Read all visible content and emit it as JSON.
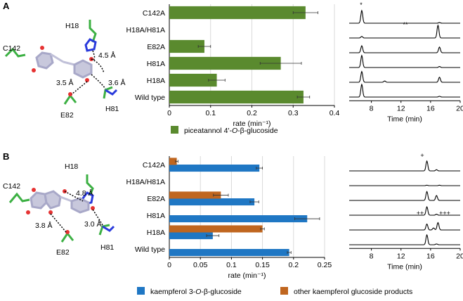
{
  "panels": [
    {
      "letter": "A"
    },
    {
      "letter": "B"
    }
  ],
  "structure_a": {
    "labels": [
      "C142",
      "H18",
      "E82",
      "H81"
    ],
    "distances": [
      "4.5 Å",
      "3.5 Å",
      "3.6 Å"
    ]
  },
  "structure_b": {
    "labels": [
      "C142",
      "H18",
      "E82",
      "H81"
    ],
    "distances": [
      "4.8 Å",
      "3.8 Å",
      "3.0 Å"
    ]
  },
  "colors": {
    "green": "#5a8a2e",
    "blue": "#1f77c4",
    "orange": "#c0661f",
    "grid": "#d9d9d9"
  },
  "chart_data": [
    {
      "type": "bar",
      "orientation": "horizontal",
      "categories": [
        "C142A",
        "H18A/H81A",
        "E82A",
        "H81A",
        "H18A",
        "Wild type"
      ],
      "series": [
        {
          "name": "piceatannol 4'-O-β-glucoside",
          "values": [
            0.33,
            0.0,
            0.085,
            0.27,
            0.115,
            0.325
          ],
          "errors": [
            0.03,
            0.0,
            0.015,
            0.05,
            0.02,
            0.015
          ]
        }
      ],
      "xlabel": "rate (min⁻¹)",
      "xticks": [
        "0",
        "0.1",
        "0.2",
        "0.3",
        "0.4"
      ],
      "xlim": [
        0,
        0.4
      ],
      "legend": {
        "label_prefix": "piceatannol 4'-",
        "label_italic": "O",
        "label_suffix": "-β-glucoside"
      }
    },
    {
      "type": "bar",
      "orientation": "horizontal",
      "categories": [
        "C142A",
        "H18A/H81A",
        "E82A",
        "H81A",
        "H18A",
        "Wild type"
      ],
      "series": [
        {
          "name": "kaempferol 3-O-β-glucoside",
          "values": [
            0.145,
            0.0,
            0.137,
            0.222,
            0.07,
            0.193
          ],
          "errors": [
            0.005,
            0.0,
            0.007,
            0.02,
            0.01,
            0.003
          ]
        },
        {
          "name": "other kaempferol glucoside products",
          "values": [
            0.012,
            0.0,
            0.083,
            0.0,
            0.15,
            0.0
          ],
          "errors": [
            0.002,
            0.0,
            0.012,
            0.0,
            0.003,
            0.0
          ]
        }
      ],
      "xlabel": "rate (min⁻¹)",
      "xticks": [
        "0",
        "0.05",
        "0.1",
        "0.15",
        "0.2",
        "0.25"
      ],
      "xlim": [
        0,
        0.25
      ],
      "legend": [
        {
          "label_prefix": "kaempferol 3-",
          "label_italic": "O",
          "label_suffix": "-β-glucoside"
        },
        {
          "label": "other kaempferol glucoside products"
        }
      ]
    },
    {
      "type": "line",
      "xlabel": "Time (min)",
      "xticks": [
        "8",
        "12",
        "16",
        "20"
      ],
      "xlim": [
        5,
        20
      ],
      "peak_marks": [
        "*",
        "**"
      ],
      "traces": [
        {
          "peaks": [
            {
              "t": 6.7,
              "h": 1.0
            },
            {
              "t": 17.2,
              "h": 0.05
            }
          ]
        },
        {
          "peaks": [
            {
              "t": 6.7,
              "h": 0.12
            },
            {
              "t": 17.0,
              "h": 1.0
            }
          ]
        },
        {
          "peaks": [
            {
              "t": 6.7,
              "h": 0.55
            },
            {
              "t": 17.2,
              "h": 0.45
            }
          ]
        },
        {
          "peaks": [
            {
              "t": 6.7,
              "h": 0.95
            },
            {
              "t": 17.2,
              "h": 0.08
            }
          ]
        },
        {
          "peaks": [
            {
              "t": 6.7,
              "h": 0.85
            },
            {
              "t": 9.8,
              "h": 0.1
            },
            {
              "t": 17.2,
              "h": 0.4
            }
          ]
        },
        {
          "peaks": [
            {
              "t": 6.7,
              "h": 1.0
            },
            {
              "t": 17.2,
              "h": 0.06
            }
          ]
        }
      ]
    },
    {
      "type": "line",
      "xlabel": "Time (min)",
      "xticks": [
        "8",
        "12",
        "16",
        "20"
      ],
      "xlim": [
        5,
        20
      ],
      "peak_marks": [
        "+",
        "++",
        "+++"
      ],
      "traces": [
        {
          "peaks": [
            {
              "t": 15.5,
              "h": 1.0
            },
            {
              "t": 16.8,
              "h": 0.12
            }
          ]
        },
        {
          "peaks": [
            {
              "t": 15.5,
              "h": 0.05
            },
            {
              "t": 17.2,
              "h": 0.05
            }
          ]
        },
        {
          "peaks": [
            {
              "t": 15.5,
              "h": 0.9
            },
            {
              "t": 16.8,
              "h": 0.5
            }
          ]
        },
        {
          "peaks": [
            {
              "t": 15.5,
              "h": 0.85
            },
            {
              "t": 16.8,
              "h": 0.1
            }
          ]
        },
        {
          "peaks": [
            {
              "t": 15.5,
              "h": 0.6
            },
            {
              "t": 16.4,
              "h": 0.2
            },
            {
              "t": 17.0,
              "h": 0.75
            }
          ]
        },
        {
          "peaks": [
            {
              "t": 15.5,
              "h": 1.0
            },
            {
              "t": 16.8,
              "h": 0.08
            }
          ]
        }
      ]
    }
  ]
}
